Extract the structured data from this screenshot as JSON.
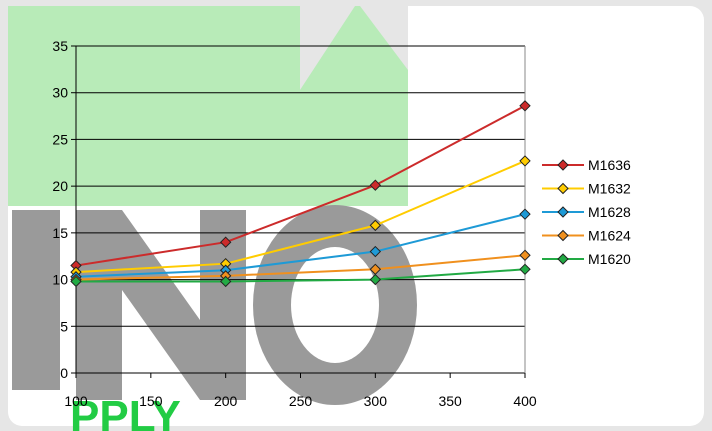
{
  "watermark": {
    "text_big": "NO",
    "text_small": "PPLY",
    "green": "#b8ebb8",
    "grey": "#9a9a9a",
    "small_green": "#22cc44"
  },
  "chart_data": {
    "type": "line",
    "title": "",
    "xlabel": "",
    "ylabel": "",
    "x": [
      100,
      200,
      300,
      400
    ],
    "xlim": [
      100,
      400
    ],
    "ylim": [
      0,
      35
    ],
    "xticks": [
      100,
      150,
      200,
      250,
      300,
      350,
      400
    ],
    "yticks": [
      0,
      5,
      10,
      15,
      20,
      25,
      30,
      35
    ],
    "grid": "horizontal",
    "legend": "right",
    "series": [
      {
        "name": "M1636",
        "color": "#cc2b2b",
        "values": [
          11.5,
          14.0,
          20.1,
          28.6
        ]
      },
      {
        "name": "M1632",
        "color": "#ffcc00",
        "values": [
          10.8,
          11.7,
          15.8,
          22.7
        ]
      },
      {
        "name": "M1628",
        "color": "#1e9ad6",
        "values": [
          10.3,
          11.0,
          13.0,
          17.0
        ]
      },
      {
        "name": "M1624",
        "color": "#f0901e",
        "values": [
          10.0,
          10.4,
          11.1,
          12.6
        ]
      },
      {
        "name": "M1620",
        "color": "#22aa44",
        "values": [
          9.8,
          9.8,
          10.0,
          11.1
        ]
      }
    ]
  }
}
